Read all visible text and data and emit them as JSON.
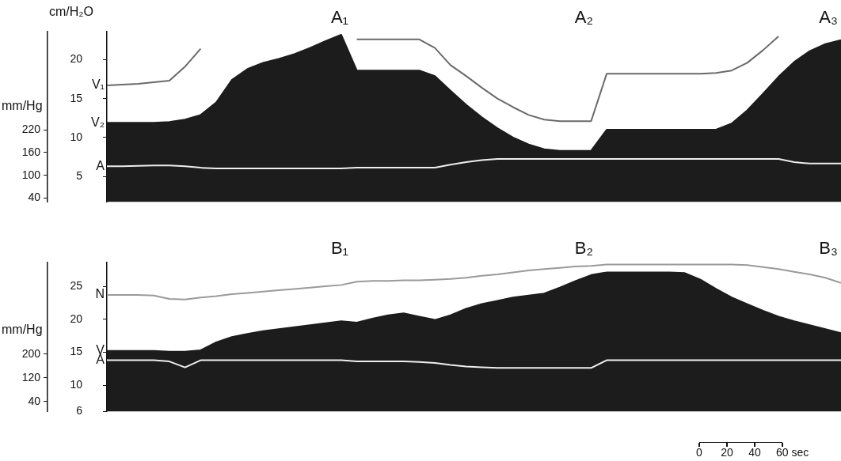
{
  "chart_data": [
    {
      "type": "line",
      "ylabel": "cm/H₂O",
      "y2label": "mm/Hg",
      "tick_labels": "y",
      "annotations": [
        "A₁",
        "A₂",
        "A₃"
      ],
      "categories": [
        null,
        null,
        null,
        null,
        null,
        null,
        null,
        null,
        null,
        null,
        null,
        null,
        null,
        null,
        null,
        null,
        null,
        null,
        null,
        null,
        null,
        null,
        null,
        null,
        null,
        null,
        null,
        null,
        null,
        null,
        null,
        null,
        null,
        null,
        null,
        null,
        null,
        null,
        null,
        null,
        null,
        null,
        null,
        null,
        null,
        null,
        null,
        null
      ],
      "ylim": [
        1.7,
        23.6
      ],
      "yticks": [
        5,
        10,
        15,
        20
      ],
      "y2lim": [
        29,
        480
      ],
      "y2ticks": [
        40,
        100,
        160,
        220
      ],
      "series": [
        {
          "name": "V₁",
          "type": "line",
          "color": "#6a6a6a",
          "values": [
            16.7,
            16.8,
            16.9,
            17.1,
            17.3,
            19.1,
            21.4,
            null,
            null,
            null,
            null,
            null,
            null,
            null,
            null,
            null,
            22.6,
            22.6,
            22.6,
            22.6,
            22.6,
            21.5,
            19.3,
            17.9,
            16.4,
            15.0,
            13.9,
            12.9,
            12.3,
            12.1,
            12.1,
            12.1,
            18.2,
            18.2,
            18.2,
            18.2,
            18.2,
            18.2,
            18.2,
            18.3,
            18.6,
            19.6,
            21.2,
            23.0,
            null,
            null,
            null,
            null
          ]
        },
        {
          "name": "V₂",
          "type": "area",
          "color": "#1c1c1c",
          "values": [
            11.9,
            11.9,
            11.9,
            11.9,
            12.0,
            12.3,
            12.9,
            14.5,
            17.4,
            18.8,
            19.6,
            20.1,
            20.7,
            21.5,
            22.4,
            23.2,
            18.6,
            18.6,
            18.6,
            18.6,
            18.6,
            17.9,
            16.0,
            14.2,
            12.6,
            11.2,
            10.0,
            9.1,
            8.5,
            8.3,
            8.3,
            8.3,
            11.0,
            11.0,
            11.0,
            11.0,
            11.0,
            11.0,
            11.0,
            11.0,
            11.8,
            13.5,
            15.6,
            17.8,
            19.7,
            21.1,
            22.0,
            22.5
          ]
        },
        {
          "name": "A",
          "type": "line",
          "axis": "y2",
          "color": "#eeeeee",
          "values": [
            124,
            124,
            125,
            126,
            126,
            124,
            120,
            118,
            118,
            118,
            118,
            118,
            118,
            118,
            118,
            118,
            120,
            120,
            120,
            120,
            120,
            120,
            128,
            135,
            140,
            143,
            143,
            143,
            143,
            143,
            143,
            143,
            143,
            143,
            143,
            143,
            143,
            143,
            143,
            143,
            143,
            143,
            143,
            143,
            135,
            131,
            131,
            131
          ]
        }
      ]
    },
    {
      "type": "line",
      "y2label": "mm/Hg",
      "tick_labels": "y",
      "annotations": [
        "B₁",
        "B₂",
        "B₃",
        "0",
        "20",
        "40",
        "60 sec"
      ],
      "categories": [
        null,
        null,
        null,
        null,
        null,
        null,
        null,
        null,
        null,
        null,
        null,
        null,
        null,
        null,
        null,
        null,
        null,
        null,
        null,
        null,
        null,
        null,
        null,
        null,
        null,
        null,
        null,
        null,
        null,
        null,
        null,
        null,
        null,
        null,
        null,
        null,
        null,
        null,
        null,
        null,
        null,
        null,
        null,
        null,
        null,
        null,
        null,
        null
      ],
      "ylim": [
        6,
        28.6
      ],
      "yticks": [
        6,
        10,
        15,
        20,
        25
      ],
      "y2lim": [
        6,
        508
      ],
      "y2ticks": [
        40,
        120,
        200
      ],
      "series": [
        {
          "name": "N",
          "type": "line",
          "color": "#9a9a9a",
          "values": [
            23.7,
            23.7,
            23.7,
            23.6,
            23.1,
            23.0,
            23.3,
            23.5,
            23.8,
            24.0,
            24.2,
            24.4,
            24.6,
            24.8,
            25.0,
            25.2,
            25.7,
            25.8,
            25.8,
            25.9,
            25.9,
            26.0,
            26.1,
            26.3,
            26.6,
            26.8,
            27.1,
            27.4,
            27.6,
            27.8,
            28.0,
            28.1,
            28.3,
            28.3,
            28.3,
            28.3,
            28.3,
            28.3,
            28.3,
            28.3,
            28.3,
            28.2,
            27.9,
            27.6,
            27.2,
            26.8,
            26.3,
            25.5
          ]
        },
        {
          "name": "V",
          "type": "area",
          "color": "#1c1c1c",
          "values": [
            15.2,
            15.2,
            15.2,
            15.2,
            15.1,
            15.1,
            15.3,
            16.5,
            17.3,
            17.8,
            18.2,
            18.5,
            18.8,
            19.1,
            19.4,
            19.7,
            19.5,
            20.1,
            20.6,
            20.9,
            20.4,
            19.9,
            20.6,
            21.6,
            22.3,
            22.8,
            23.3,
            23.6,
            23.9,
            24.8,
            25.8,
            26.7,
            27.1,
            27.1,
            27.1,
            27.1,
            27.1,
            27.0,
            26.0,
            24.6,
            23.3,
            22.3,
            21.3,
            20.4,
            19.7,
            19.1,
            18.5,
            17.9
          ]
        },
        {
          "name": "A",
          "type": "line",
          "axis": "y2",
          "color": "#eeeeee",
          "values": [
            179,
            179,
            179,
            179,
            175,
            155,
            179,
            179,
            179,
            179,
            179,
            179,
            179,
            179,
            179,
            179,
            175,
            175,
            175,
            175,
            173,
            170,
            163,
            158,
            155,
            153,
            153,
            153,
            153,
            153,
            153,
            153,
            179,
            179,
            179,
            179,
            179,
            179,
            179,
            179,
            179,
            179,
            179,
            179,
            179,
            179,
            179,
            179
          ]
        }
      ]
    }
  ]
}
